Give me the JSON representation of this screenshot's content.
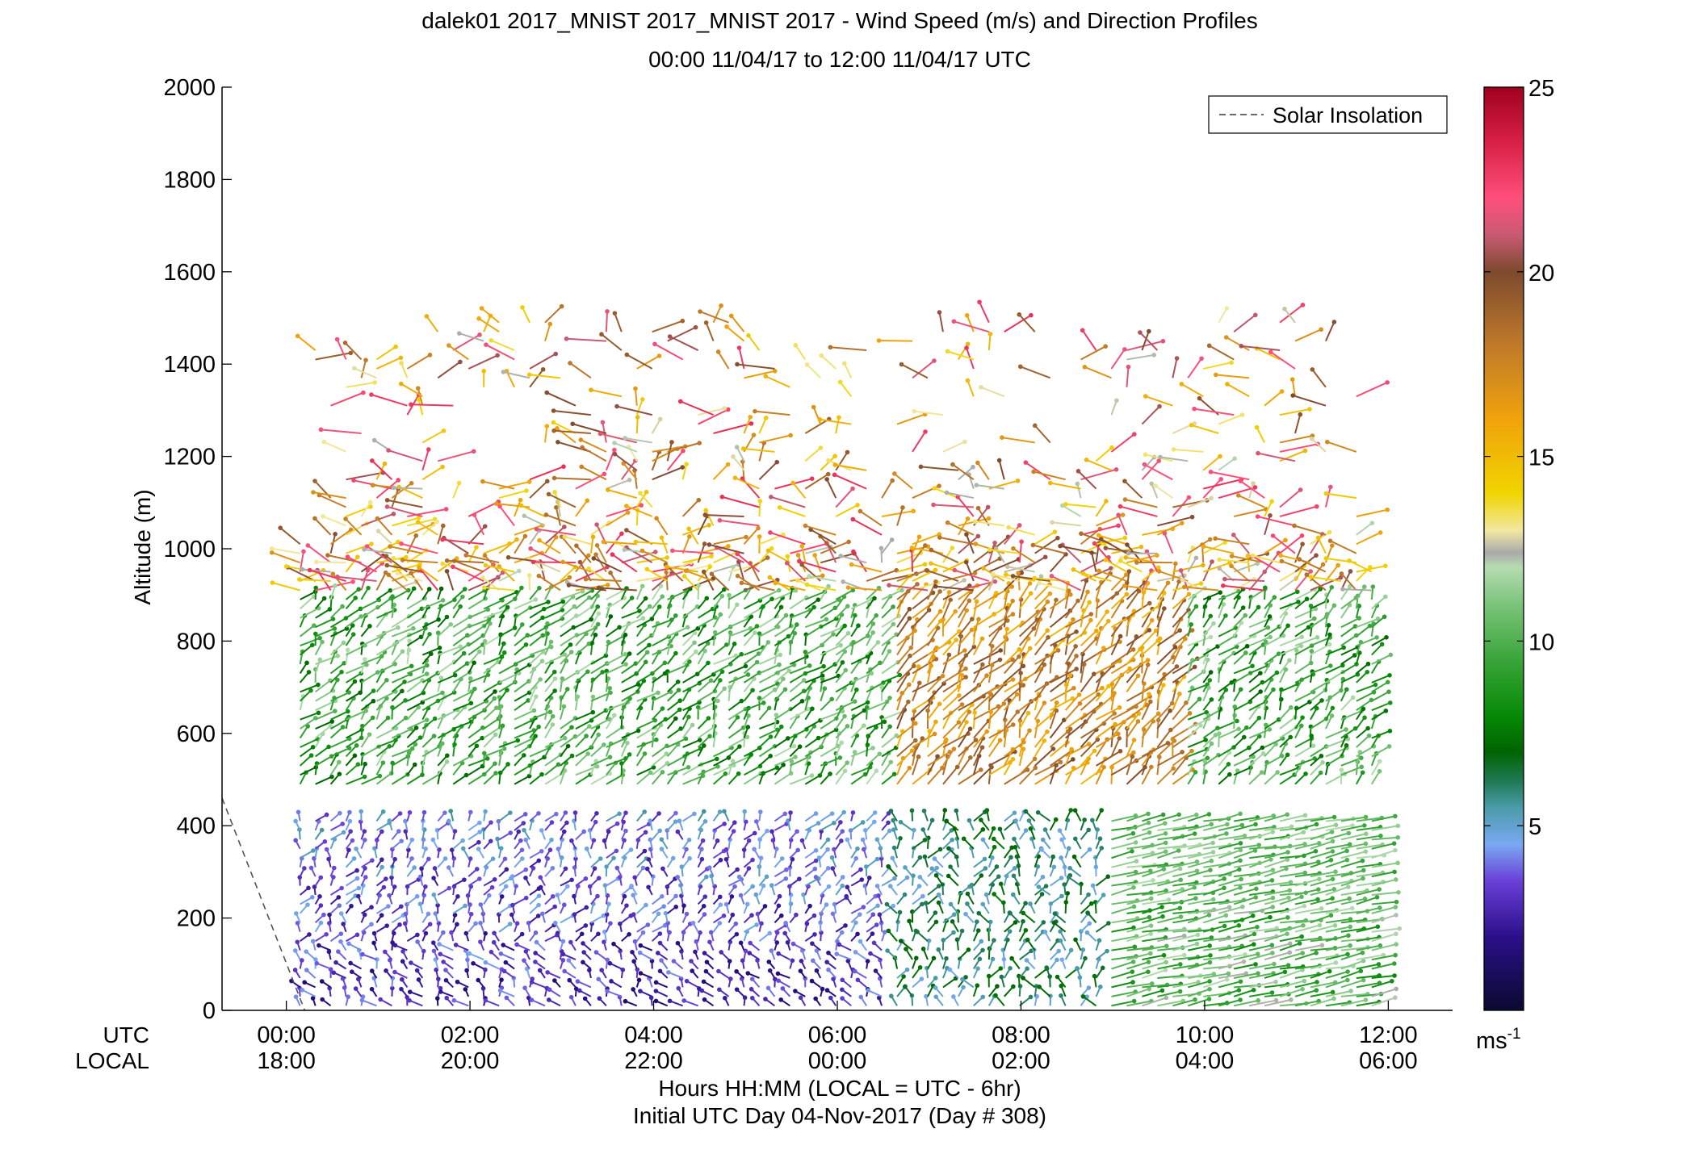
{
  "chart_data": {
    "type": "scatter",
    "title_line1": "dalek01 2017_MNIST 2017_MNIST 2017 - Wind Speed (m/s) and Direction Profiles",
    "title_line2": "00:00 11/04/17 to 12:00 11/04/17  UTC",
    "ylabel": "Altitude (m)",
    "xlabel_line1": "Hours HH:MM  (LOCAL = UTC - 6hr)",
    "xlabel_line2": "Initial UTC Day 04-Nov-2017 (Day # 308)",
    "utc_label": "UTC",
    "local_label": "LOCAL",
    "x_ticks_utc": [
      "00:00",
      "02:00",
      "04:00",
      "06:00",
      "08:00",
      "10:00",
      "12:00"
    ],
    "x_ticks_local": [
      "18:00",
      "20:00",
      "22:00",
      "00:00",
      "02:00",
      "04:00",
      "06:00"
    ],
    "y_ticks": [
      "0",
      "200",
      "400",
      "600",
      "800",
      "1000",
      "1200",
      "1400",
      "1600",
      "1800",
      "2000"
    ],
    "xlim_hours": [
      -0.7,
      12.7
    ],
    "ylim": [
      0,
      2000
    ],
    "legend": {
      "label": "Solar Insolation",
      "placement": "top-right"
    },
    "colorbar": {
      "ticks": [
        "5",
        "10",
        "15",
        "20",
        "25"
      ],
      "range": [
        0,
        25
      ],
      "unit_base": "ms",
      "unit_exp": "-1",
      "stops": [
        {
          "v": 0,
          "c": "#0a0a30"
        },
        {
          "v": 2,
          "c": "#2b0f8a"
        },
        {
          "v": 3.5,
          "c": "#6a3fd8"
        },
        {
          "v": 4.5,
          "c": "#79a9f2"
        },
        {
          "v": 5.5,
          "c": "#4a9ba8"
        },
        {
          "v": 6.2,
          "c": "#1f7a55"
        },
        {
          "v": 7,
          "c": "#006400"
        },
        {
          "v": 8,
          "c": "#078a07"
        },
        {
          "v": 9.5,
          "c": "#3aa53a"
        },
        {
          "v": 11,
          "c": "#7cc47c"
        },
        {
          "v": 12,
          "c": "#b5dcb0"
        },
        {
          "v": 12.4,
          "c": "#aaaaaa"
        },
        {
          "v": 13,
          "c": "#f2e8a0"
        },
        {
          "v": 14,
          "c": "#f1d400"
        },
        {
          "v": 16,
          "c": "#f0a30a"
        },
        {
          "v": 18,
          "c": "#c07a2a"
        },
        {
          "v": 20,
          "c": "#7d4a2e"
        },
        {
          "v": 21,
          "c": "#c85a73"
        },
        {
          "v": 22,
          "c": "#ff4f7b"
        },
        {
          "v": 23.5,
          "c": "#d92045"
        },
        {
          "v": 25,
          "c": "#a0001e"
        }
      ]
    },
    "solar_insolation_line": [
      [
        -0.7,
        460
      ],
      [
        0.2,
        0
      ]
    ],
    "profiles": {
      "start_hour": 0.15,
      "end_hour": 11.85,
      "step_hours": 0.1667,
      "vertical_step_m": 20,
      "boundary_gap_m": [
        420,
        480
      ]
    }
  }
}
